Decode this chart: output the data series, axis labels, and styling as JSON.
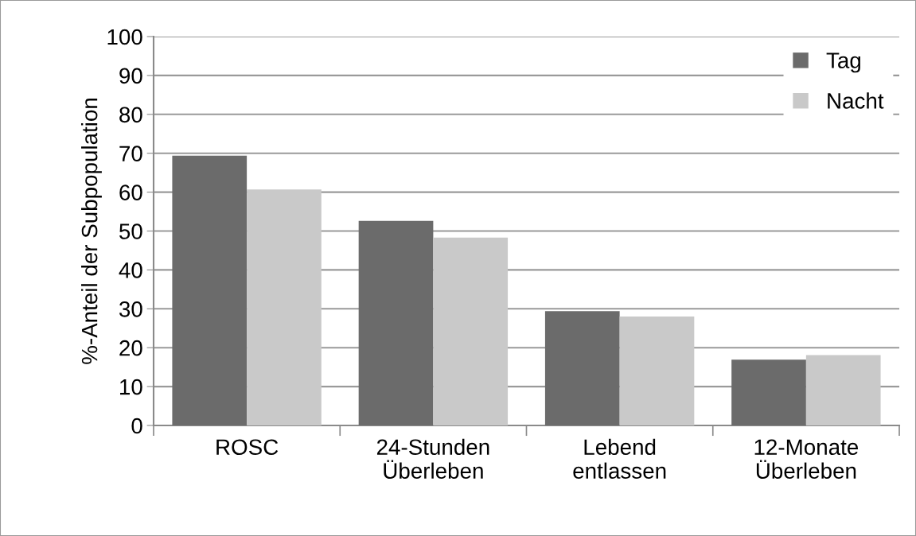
{
  "chart_data": {
    "type": "bar",
    "ylabel": "%-Anteil der Subpopulation",
    "categories": [
      "ROSC",
      "24-Stunden\nÜberleben",
      "Lebend\nentlassen",
      "12-Monate\nÜberleben"
    ],
    "series": [
      {
        "name": "Tag",
        "color": "#6b6b6b",
        "values": [
          69.4,
          52.6,
          29.4,
          16.9
        ]
      },
      {
        "name": "Nacht",
        "color": "#c9c9c9",
        "values": [
          60.7,
          48.3,
          28.0,
          18.1
        ]
      }
    ],
    "ylim": [
      0,
      100
    ],
    "yticks": [
      0,
      10,
      20,
      30,
      40,
      50,
      60,
      70,
      80,
      90,
      100
    ],
    "grid": "y",
    "legend": "top right"
  }
}
